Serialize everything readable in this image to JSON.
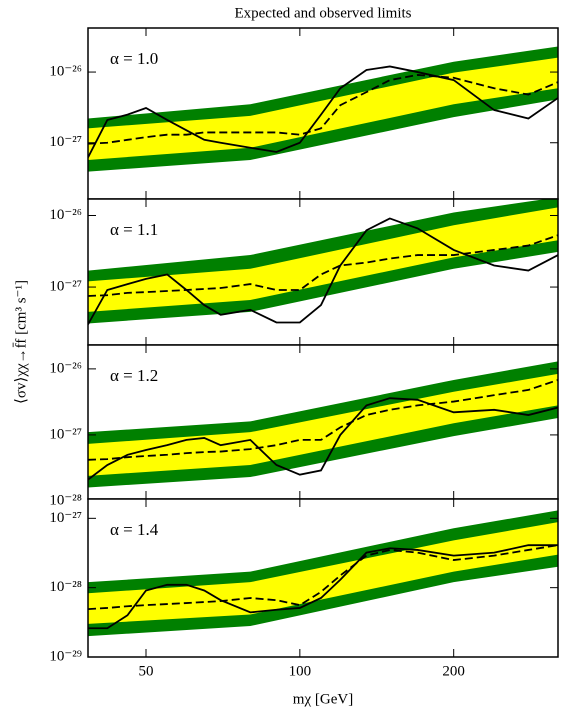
{
  "title": "Expected and observed limits",
  "xlabel": "mχ [GeV]",
  "ylabel": "⟨σv⟩χχ→f̄f [cm³ s⁻¹]",
  "xlim": [
    38.5,
    320
  ],
  "log_x": true,
  "xticks": [
    50,
    100,
    200
  ],
  "x": [
    38.5,
    42,
    46,
    50,
    55,
    60,
    65,
    70,
    80,
    90,
    100,
    110,
    120,
    135,
    150,
    170,
    200,
    240,
    280,
    320
  ],
  "band_x": [
    38.5,
    80,
    200,
    320
  ],
  "chart_data": [
    {
      "type": "line",
      "annotation": "α = 1.0",
      "log_y": true,
      "ylim": [
        1.6e-28,
        4.2e-26
      ],
      "yticks": [
        {
          "value": 1e-27,
          "label": "10⁻²⁷"
        },
        {
          "value": 1e-26,
          "label": "10⁻²⁶"
        }
      ],
      "bands": [
        {
          "color": "#008000",
          "lower": [
            3.9e-28,
            5.7e-28,
            2.3e-27,
            4.1e-27
          ],
          "upper": [
            2.2e-27,
            3.5e-27,
            1.4e-26,
            2.3e-26
          ]
        },
        {
          "color": "#ffff00",
          "lower": [
            5.7e-28,
            8.5e-28,
            3.5e-27,
            5.9e-27
          ],
          "upper": [
            1.6e-27,
            2.4e-27,
            9.8e-27,
            1.6e-26
          ]
        }
      ],
      "series": [
        {
          "color": "#000000",
          "dashed": true,
          "values": [
            9.7e-28,
            1e-27,
            1.1e-27,
            1.2e-27,
            1.3e-27,
            1.3e-27,
            1.4e-27,
            1.4e-27,
            1.4e-27,
            1.4e-27,
            1.3e-27,
            1.6e-27,
            3.4e-27,
            5.2e-27,
            7.7e-27,
            9.1e-27,
            8.3e-27,
            5.9e-27,
            4.8e-27,
            7.2e-27
          ]
        },
        {
          "color": "#000000",
          "dashed": false,
          "values": [
            6.2e-28,
            2.1e-27,
            2.5e-27,
            3.1e-27,
            2.1e-27,
            1.5e-27,
            1.1e-27,
            1e-27,
            8.5e-28,
            7.4e-28,
            1e-27,
            2.5e-27,
            5.9e-27,
            1.07e-26,
            1.2e-26,
            1e-26,
            7.7e-27,
            2.9e-27,
            2.2e-27,
            4.3e-27
          ]
        }
      ]
    },
    {
      "type": "line",
      "annotation": "α = 1.1",
      "log_y": true,
      "ylim": [
        1.55e-28,
        1.7e-26
      ],
      "yticks": [
        {
          "value": 1e-27,
          "label": "10⁻²⁷"
        },
        {
          "value": 1e-26,
          "label": "10⁻²⁶"
        }
      ],
      "bands": [
        {
          "color": "#008000",
          "lower": [
            3.1e-28,
            4.5e-28,
            1.8e-27,
            3.1e-27
          ],
          "upper": [
            1.7e-27,
            2.8e-27,
            1.1e-26,
            1.8e-26
          ]
        },
        {
          "color": "#ffff00",
          "lower": [
            4.5e-28,
            6.6e-28,
            2.6e-27,
            4.5e-27
          ],
          "upper": [
            1.2e-27,
            1.8e-27,
            7.3e-27,
            1.3e-26
          ]
        }
      ],
      "series": [
        {
          "color": "#000000",
          "dashed": true,
          "values": [
            7.5e-28,
            7.7e-28,
            8.3e-28,
            8.5e-28,
            8.8e-28,
            9.1e-28,
            9.4e-28,
            9.7e-28,
            1.1e-27,
            9.1e-28,
            9.1e-28,
            1.5e-27,
            2e-27,
            2.2e-27,
            2.5e-27,
            2.8e-27,
            2.8e-27,
            3.3e-27,
            3.8e-27,
            5.3e-27
          ]
        },
        {
          "color": "#000000",
          "dashed": false,
          "values": [
            3e-28,
            9.1e-28,
            1.1e-27,
            1.3e-27,
            1.5e-27,
            9.1e-28,
            5.6e-28,
            4.1e-28,
            4.8e-28,
            3.2e-28,
            3.2e-28,
            5.6e-28,
            2e-27,
            6.2e-27,
            9.1e-27,
            6.6e-27,
            3.3e-27,
            2e-27,
            1.7e-27,
            2.8e-27
          ]
        }
      ]
    },
    {
      "type": "line",
      "annotation": "α = 1.2",
      "log_y": true,
      "ylim": [
        1.07e-28,
        2.3e-26
      ],
      "yticks": [
        {
          "value": 1e-28,
          "label": "10⁻²⁸"
        },
        {
          "value": 1e-27,
          "label": "10⁻²⁷"
        },
        {
          "value": 1e-26,
          "label": "10⁻²⁶"
        }
      ],
      "bands": [
        {
          "color": "#008000",
          "lower": [
            1.6e-28,
            2.3e-28,
            9.6e-28,
            1.8e-27
          ],
          "upper": [
            1.1e-27,
            1.6e-27,
            6.8e-27,
            1.3e-26
          ]
        },
        {
          "color": "#ffff00",
          "lower": [
            2.4e-28,
            3.5e-28,
            1.5e-27,
            2.8e-27
          ],
          "upper": [
            7.3e-28,
            1.1e-27,
            4.5e-27,
            8.4e-27
          ]
        }
      ],
      "series": [
        {
          "color": "#000000",
          "dashed": true,
          "values": [
            4.2e-28,
            4.3e-28,
            4.6e-28,
            4.8e-28,
            5e-28,
            5.3e-28,
            5.5e-28,
            5.6e-28,
            6.1e-28,
            7e-28,
            8.4e-28,
            8.4e-28,
            1.3e-27,
            2e-27,
            2.4e-27,
            2.8e-27,
            3.2e-27,
            4e-27,
            4.8e-27,
            6.8e-27
          ]
        },
        {
          "color": "#000000",
          "dashed": false,
          "values": [
            2.1e-28,
            3.5e-28,
            5e-28,
            5.9e-28,
            7e-28,
            8.4e-28,
            9e-28,
            7e-28,
            8.4e-28,
            3.5e-28,
            2.5e-28,
            2.9e-28,
            1e-27,
            2.8e-27,
            3.6e-27,
            3.4e-27,
            2.2e-27,
            2.4e-27,
            2e-27,
            2.6e-27
          ]
        }
      ]
    },
    {
      "type": "line",
      "annotation": "α = 1.4",
      "log_y": true,
      "ylim": [
        1e-29,
        1.9e-27
      ],
      "yticks": [
        {
          "value": 1e-29,
          "label": "10⁻²⁹"
        },
        {
          "value": 1e-28,
          "label": "10⁻²⁸"
        },
        {
          "value": 1e-27,
          "label": "10⁻²⁷"
        }
      ],
      "bands": [
        {
          "color": "#008000",
          "lower": [
            2e-29,
            2.8e-29,
            1.2e-28,
            2e-28
          ],
          "upper": [
            1.2e-28,
            1.7e-28,
            7.2e-28,
            1.3e-27
          ]
        },
        {
          "color": "#ffff00",
          "lower": [
            3e-29,
            4.1e-29,
            1.7e-28,
            3e-28
          ],
          "upper": [
            8.3e-29,
            1.2e-28,
            4.8e-28,
            8.8e-28
          ]
        }
      ],
      "series": [
        {
          "color": "#000000",
          "dashed": true,
          "values": [
            4.9e-29,
            5.1e-29,
            5.4e-29,
            5.6e-29,
            5.8e-29,
            6e-29,
            6.2e-29,
            6.4e-29,
            7.1e-29,
            6.6e-29,
            5.6e-29,
            8.7e-29,
            1.5e-28,
            2.9e-28,
            3.5e-28,
            3.2e-28,
            2.5e-28,
            2.9e-28,
            3.5e-28,
            4.1e-28
          ]
        },
        {
          "color": "#000000",
          "dashed": false,
          "values": [
            2.6e-29,
            2.6e-29,
            4e-29,
            9.1e-29,
            1.1e-28,
            1.1e-28,
            9.1e-29,
            6.6e-29,
            4.4e-29,
            4.8e-29,
            5.1e-29,
            7.1e-29,
            1.3e-28,
            3.2e-28,
            3.7e-28,
            3.5e-28,
            2.9e-28,
            3.2e-28,
            4.1e-28,
            4.1e-28
          ]
        }
      ]
    }
  ]
}
